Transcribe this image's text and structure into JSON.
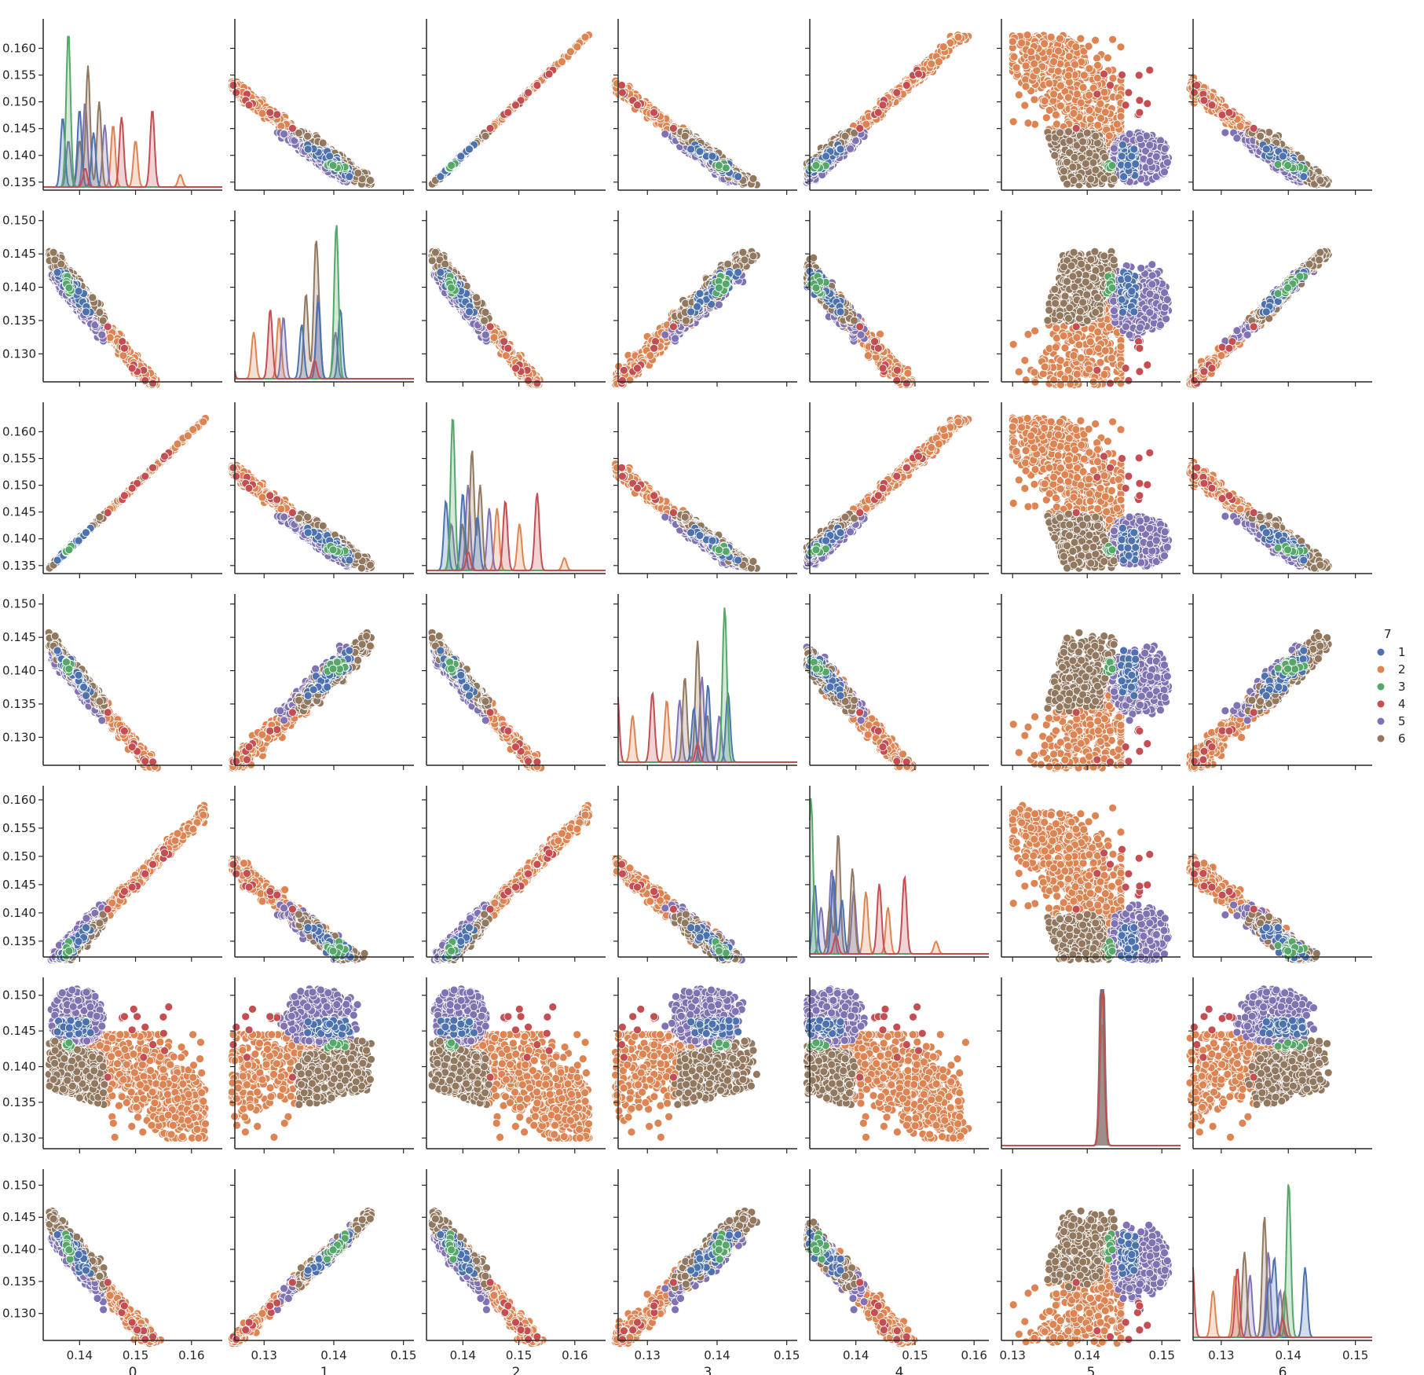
{
  "chart_data": {
    "type": "scatter",
    "kind": "pairplot",
    "variables": [
      "0",
      "1",
      "2",
      "3",
      "4",
      "5",
      "6"
    ],
    "hue_variable": "7",
    "diagonal": "kde",
    "grid": false,
    "legend": {
      "title": "7",
      "placement": "right",
      "entries": [
        {
          "label": "1",
          "color": "#4C72B0"
        },
        {
          "label": "2",
          "color": "#DD8452"
        },
        {
          "label": "3",
          "color": "#55A868"
        },
        {
          "label": "4",
          "color": "#C44E52"
        },
        {
          "label": "5",
          "color": "#8172B3"
        },
        {
          "label": "6",
          "color": "#937860"
        }
      ]
    },
    "axis_ranges": {
      "0": [
        0.1335,
        0.1655
      ],
      "1": [
        0.1258,
        0.1515
      ],
      "2": [
        0.1335,
        0.1655
      ],
      "3": [
        0.1258,
        0.1515
      ],
      "4": [
        0.1322,
        0.1625
      ],
      "5": [
        0.1285,
        0.1525
      ],
      "6": [
        0.1258,
        0.1525
      ]
    },
    "ticks": {
      "0": [
        "0.135",
        "0.140",
        "0.145",
        "0.150",
        "0.155",
        "0.160"
      ],
      "1": [
        "0.130",
        "0.135",
        "0.140",
        "0.145",
        "0.150"
      ],
      "2": [
        "0.135",
        "0.140",
        "0.145",
        "0.150",
        "0.155",
        "0.160"
      ],
      "3": [
        "0.130",
        "0.135",
        "0.140",
        "0.145",
        "0.150"
      ],
      "4": [
        "0.135",
        "0.140",
        "0.145",
        "0.150",
        "0.155",
        "0.160"
      ],
      "5": [
        "0.130",
        "0.135",
        "0.140",
        "0.145",
        "0.150"
      ],
      "6": [
        "0.130",
        "0.135",
        "0.140",
        "0.145",
        "0.150"
      ]
    },
    "x_ticks": {
      "0": [
        "0.14",
        "0.15",
        "0.16"
      ],
      "1": [
        "0.13",
        "0.14",
        "0.15"
      ],
      "2": [
        "0.14",
        "0.15",
        "0.16"
      ],
      "3": [
        "0.13",
        "0.14",
        "0.15"
      ],
      "4": [
        "0.14",
        "0.15",
        "0.16"
      ],
      "5": [
        "0.13",
        "0.14",
        "0.15"
      ],
      "6": [
        "0.13",
        "0.14",
        "0.15"
      ]
    },
    "groups": {
      "1": {
        "v0": [
          0.136,
          0.142
        ],
        "v5": [
          0.1445,
          0.1465
        ],
        "n": 60
      },
      "2": {
        "v0": [
          0.14,
          0.1625
        ],
        "v5": [
          0.13,
          0.1445
        ],
        "n": 700
      },
      "3": {
        "v0": [
          0.1375,
          0.1385
        ],
        "v5": [
          0.1425,
          0.1435
        ],
        "n": 14
      },
      "4": {
        "v0": [
          0.144,
          0.158
        ],
        "v5": [
          0.137,
          0.1485
        ],
        "n": 14
      },
      "5": {
        "v0": [
          0.135,
          0.1445
        ],
        "v5": [
          0.143,
          0.151
        ],
        "n": 380
      },
      "6": {
        "v0": [
          0.1345,
          0.1445
        ],
        "v5": [
          0.137,
          0.144
        ],
        "n": 330
      }
    },
    "kde_peaks": {
      "0": {
        "1": [
          [
            0.137,
            0.45
          ],
          [
            0.14,
            0.5
          ],
          [
            0.1425,
            0.35
          ]
        ],
        "2": [
          [
            0.146,
            0.4
          ],
          [
            0.15,
            0.3
          ],
          [
            0.158,
            0.08
          ]
        ],
        "3": [
          [
            0.138,
            1.0
          ]
        ],
        "4": [
          [
            0.1475,
            0.45
          ],
          [
            0.153,
            0.5
          ],
          [
            0.141,
            0.12
          ]
        ],
        "5": [
          [
            0.141,
            0.55
          ],
          [
            0.1445,
            0.4
          ],
          [
            0.138,
            0.3
          ]
        ],
        "6": [
          [
            0.1415,
            0.78
          ],
          [
            0.1435,
            0.55
          ],
          [
            0.14,
            0.3
          ]
        ]
      }
    }
  }
}
